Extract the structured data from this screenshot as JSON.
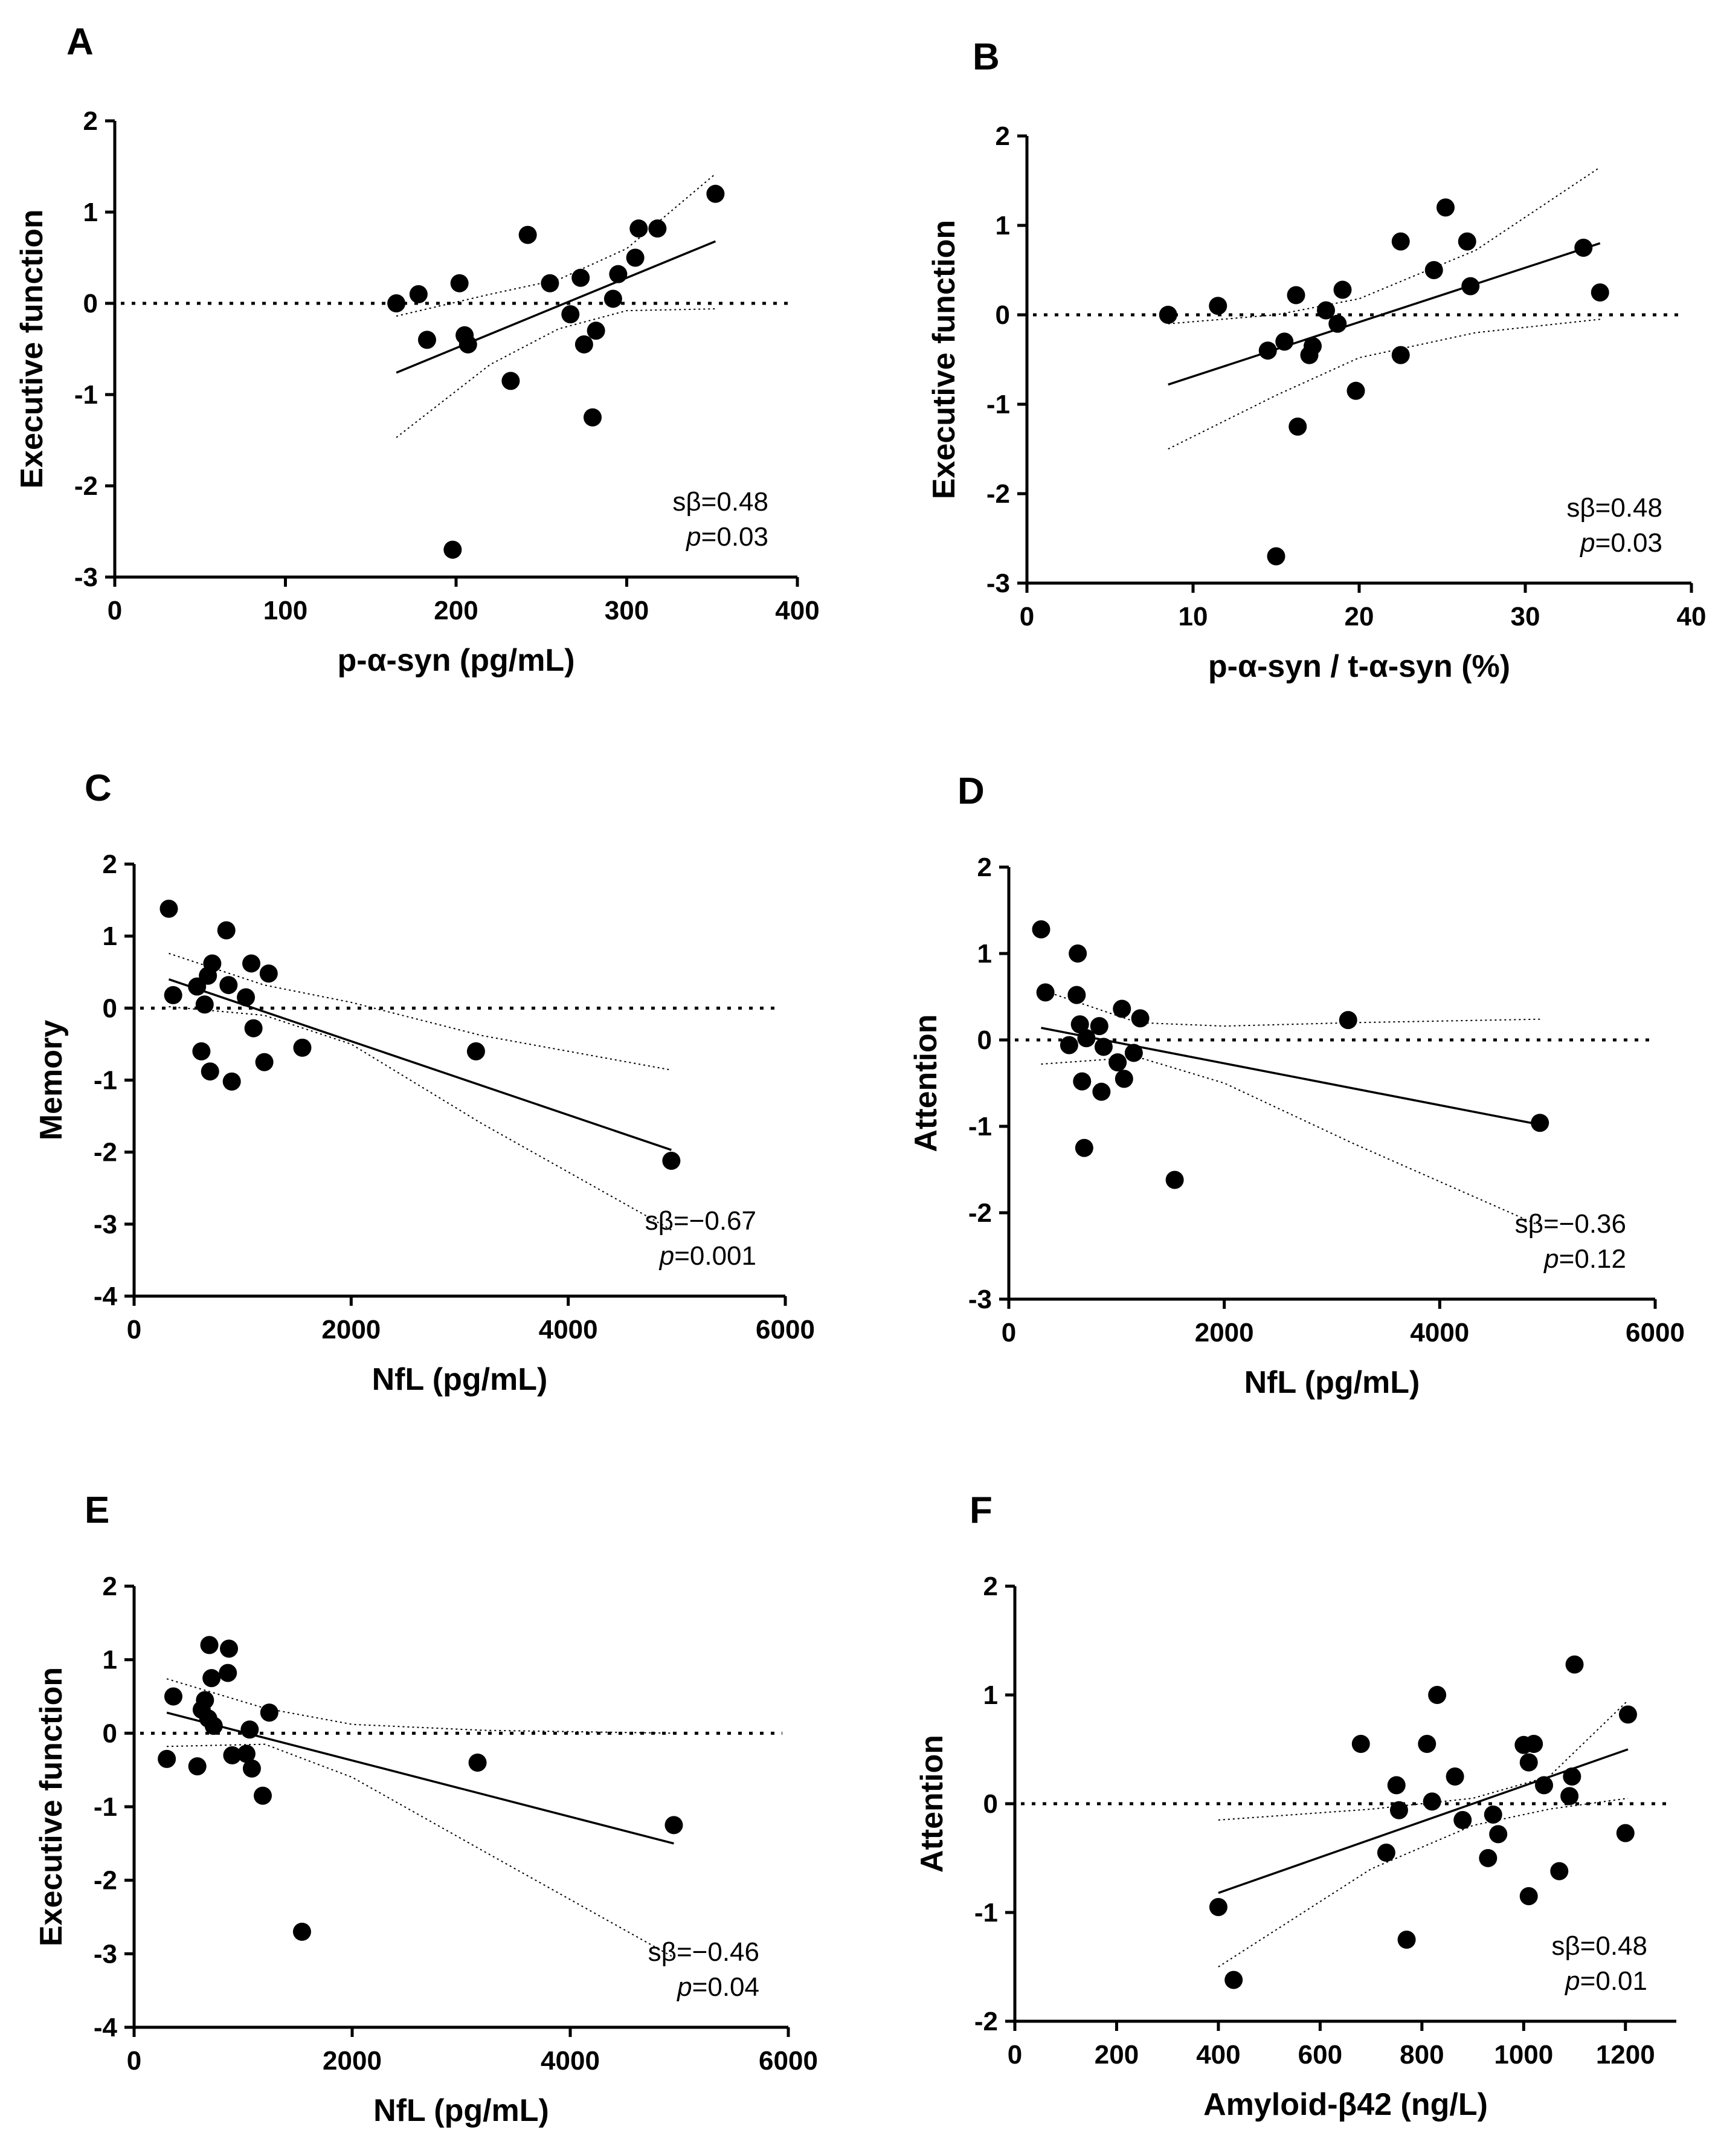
{
  "chart_data": [
    {
      "type": "scatter",
      "panel": "A",
      "xlabel": "p-α-syn (pg/mL)",
      "ylabel": "Executive function",
      "xlim": [
        0,
        400
      ],
      "ylim": [
        -3,
        2
      ],
      "xticks": [
        0,
        100,
        200,
        300,
        400
      ],
      "yticks": [
        -3,
        -2,
        -1,
        0,
        1,
        2
      ],
      "xtick_labels": [
        "0",
        "100",
        "200",
        "300",
        "400"
      ],
      "ytick_labels": [
        "-3",
        "-2",
        "-1",
        "0",
        "1",
        "2"
      ],
      "points": [
        [
          165,
          0.0
        ],
        [
          178,
          0.1
        ],
        [
          183,
          -0.4
        ],
        [
          202,
          0.22
        ],
        [
          205,
          -0.35
        ],
        [
          207,
          -0.45
        ],
        [
          198,
          -2.7
        ],
        [
          232,
          -0.85
        ],
        [
          242,
          0.75
        ],
        [
          255,
          0.22
        ],
        [
          267,
          -0.12
        ],
        [
          273,
          0.28
        ],
        [
          275,
          -0.45
        ],
        [
          280,
          -1.25
        ],
        [
          282,
          -0.3
        ],
        [
          292,
          0.05
        ],
        [
          295,
          0.32
        ],
        [
          305,
          0.5
        ],
        [
          307,
          0.82
        ],
        [
          318,
          0.82
        ],
        [
          352,
          1.2
        ]
      ],
      "fit": {
        "x": [
          165,
          352
        ],
        "y": [
          -0.76,
          0.68
        ]
      },
      "ci_upper": [
        [
          165,
          -0.14
        ],
        [
          220,
          0.1
        ],
        [
          260,
          0.26
        ],
        [
          300,
          0.6
        ],
        [
          352,
          1.42
        ]
      ],
      "ci_lower": [
        [
          165,
          -1.47
        ],
        [
          220,
          -0.67
        ],
        [
          260,
          -0.28
        ],
        [
          300,
          -0.08
        ],
        [
          352,
          -0.06
        ]
      ],
      "stat_beta": "sβ=0.48",
      "stat_p": "p",
      "stat_p_value": "=0.03"
    },
    {
      "type": "scatter",
      "panel": "B",
      "xlabel": "p-α-syn / t-α-syn (%)",
      "ylabel": "Executive function",
      "xlim": [
        0,
        40
      ],
      "ylim": [
        -3,
        2
      ],
      "xticks": [
        0,
        10,
        20,
        30,
        40
      ],
      "yticks": [
        -3,
        -2,
        -1,
        0,
        1,
        2
      ],
      "xtick_labels": [
        "0",
        "10",
        "20",
        "30",
        "40"
      ],
      "ytick_labels": [
        "-3",
        "-2",
        "-1",
        "0",
        "1",
        "2"
      ],
      "points": [
        [
          8.5,
          0.0
        ],
        [
          11.5,
          0.1
        ],
        [
          14.5,
          -0.4
        ],
        [
          15.0,
          -2.7
        ],
        [
          15.5,
          -0.3
        ],
        [
          16.2,
          0.22
        ],
        [
          16.3,
          -1.25
        ],
        [
          17.0,
          -0.45
        ],
        [
          17.2,
          -0.35
        ],
        [
          18.0,
          0.05
        ],
        [
          18.7,
          -0.1
        ],
        [
          19.0,
          0.28
        ],
        [
          19.8,
          -0.85
        ],
        [
          22.5,
          -0.45
        ],
        [
          22.5,
          0.82
        ],
        [
          24.5,
          0.5
        ],
        [
          25.2,
          1.2
        ],
        [
          26.5,
          0.82
        ],
        [
          26.7,
          0.32
        ],
        [
          33.5,
          0.75
        ],
        [
          34.5,
          0.25
        ]
      ],
      "fit": {
        "x": [
          8.5,
          34.5
        ],
        "y": [
          -0.78,
          0.8
        ]
      },
      "ci_upper": [
        [
          8.5,
          -0.1
        ],
        [
          15,
          0.0
        ],
        [
          20,
          0.18
        ],
        [
          27,
          0.72
        ],
        [
          34.5,
          1.65
        ]
      ],
      "ci_lower": [
        [
          8.5,
          -1.5
        ],
        [
          15,
          -0.9
        ],
        [
          20,
          -0.48
        ],
        [
          27,
          -0.2
        ],
        [
          34.5,
          -0.05
        ]
      ],
      "stat_beta": "sβ=0.48",
      "stat_p": "p",
      "stat_p_value": "=0.03"
    },
    {
      "type": "scatter",
      "panel": "C",
      "xlabel": "NfL (pg/mL)",
      "ylabel": "Memory",
      "xlim": [
        0,
        6000
      ],
      "ylim": [
        -4,
        2
      ],
      "xticks": [
        0,
        2000,
        4000,
        6000
      ],
      "yticks": [
        -4,
        -3,
        -2,
        -1,
        0,
        1,
        2
      ],
      "xtick_labels": [
        "0",
        "2000",
        "4000",
        "6000"
      ],
      "ytick_labels": [
        "-4",
        "-3",
        "-2",
        "-1",
        "0",
        "1",
        "2"
      ],
      "points": [
        [
          320,
          1.38
        ],
        [
          360,
          0.18
        ],
        [
          580,
          0.3
        ],
        [
          620,
          -0.6
        ],
        [
          650,
          0.05
        ],
        [
          680,
          0.45
        ],
        [
          720,
          0.62
        ],
        [
          700,
          -0.88
        ],
        [
          850,
          1.08
        ],
        [
          870,
          0.32
        ],
        [
          900,
          -1.02
        ],
        [
          1030,
          0.15
        ],
        [
          1080,
          0.62
        ],
        [
          1100,
          -0.28
        ],
        [
          1200,
          -0.75
        ],
        [
          1240,
          0.48
        ],
        [
          1550,
          -0.55
        ],
        [
          3150,
          -0.6
        ],
        [
          4950,
          -2.12
        ]
      ],
      "fit": {
        "x": [
          320,
          4950
        ],
        "y": [
          0.4,
          -1.97
        ]
      },
      "ci_upper": [
        [
          320,
          0.76
        ],
        [
          1200,
          0.32
        ],
        [
          2000,
          0.08
        ],
        [
          3200,
          -0.38
        ],
        [
          4950,
          -0.86
        ]
      ],
      "ci_lower": [
        [
          320,
          0.02
        ],
        [
          1200,
          -0.1
        ],
        [
          2000,
          -0.5
        ],
        [
          3200,
          -1.6
        ],
        [
          4950,
          -3.08
        ]
      ],
      "stat_beta": "sβ=−0.67",
      "stat_p": "p",
      "stat_p_value": "=0.001"
    },
    {
      "type": "scatter",
      "panel": "D",
      "xlabel": "NfL (pg/mL)",
      "ylabel": "Attention",
      "xlim": [
        0,
        6000
      ],
      "ylim": [
        -3,
        2
      ],
      "xticks": [
        0,
        2000,
        4000,
        6000
      ],
      "yticks": [
        -3,
        -2,
        -1,
        0,
        1,
        2
      ],
      "xtick_labels": [
        "0",
        "2000",
        "4000",
        "6000"
      ],
      "ytick_labels": [
        "-3",
        "-2",
        "-1",
        "0",
        "1",
        "2"
      ],
      "points": [
        [
          300,
          1.28
        ],
        [
          340,
          0.55
        ],
        [
          560,
          -0.06
        ],
        [
          630,
          0.52
        ],
        [
          640,
          1.0
        ],
        [
          660,
          0.18
        ],
        [
          680,
          -0.48
        ],
        [
          700,
          -1.25
        ],
        [
          720,
          0.02
        ],
        [
          840,
          0.16
        ],
        [
          860,
          -0.6
        ],
        [
          880,
          -0.08
        ],
        [
          1010,
          -0.26
        ],
        [
          1050,
          0.36
        ],
        [
          1070,
          -0.45
        ],
        [
          1160,
          -0.15
        ],
        [
          1220,
          0.25
        ],
        [
          1540,
          -1.62
        ],
        [
          3150,
          0.23
        ],
        [
          4930,
          -0.96
        ]
      ],
      "fit": {
        "x": [
          300,
          4930
        ],
        "y": [
          0.14,
          -0.98
        ]
      },
      "ci_upper": [
        [
          300,
          0.58
        ],
        [
          1200,
          0.2
        ],
        [
          2000,
          0.16
        ],
        [
          3200,
          0.2
        ],
        [
          4930,
          0.24
        ]
      ],
      "ci_lower": [
        [
          300,
          -0.28
        ],
        [
          1200,
          -0.2
        ],
        [
          2000,
          -0.5
        ],
        [
          3200,
          -1.2
        ],
        [
          4930,
          -2.15
        ]
      ],
      "stat_beta": "sβ=−0.36",
      "stat_p": "p",
      "stat_p_value": "=0.12"
    },
    {
      "type": "scatter",
      "panel": "E",
      "xlabel": "NfL (pg/mL)",
      "ylabel": "Executive function",
      "xlim": [
        0,
        6000
      ],
      "ylim": [
        -4,
        2
      ],
      "xticks": [
        0,
        2000,
        4000,
        6000
      ],
      "yticks": [
        -4,
        -3,
        -2,
        -1,
        0,
        1,
        2
      ],
      "xtick_labels": [
        "0",
        "2000",
        "4000",
        "6000"
      ],
      "ytick_labels": [
        "-4",
        "-3",
        "-2",
        "-1",
        "0",
        "1",
        "2"
      ],
      "points": [
        [
          300,
          -0.35
        ],
        [
          360,
          0.5
        ],
        [
          580,
          -0.45
        ],
        [
          620,
          0.32
        ],
        [
          650,
          0.45
        ],
        [
          680,
          0.2
        ],
        [
          690,
          1.2
        ],
        [
          710,
          0.75
        ],
        [
          730,
          0.1
        ],
        [
          860,
          0.82
        ],
        [
          870,
          1.15
        ],
        [
          900,
          -0.3
        ],
        [
          1030,
          -0.28
        ],
        [
          1060,
          0.05
        ],
        [
          1080,
          -0.48
        ],
        [
          1180,
          -0.85
        ],
        [
          1240,
          0.28
        ],
        [
          1540,
          -2.7
        ],
        [
          3150,
          -0.4
        ],
        [
          4950,
          -1.25
        ]
      ],
      "fit": {
        "x": [
          300,
          4950
        ],
        "y": [
          0.28,
          -1.5
        ]
      },
      "ci_upper": [
        [
          300,
          0.74
        ],
        [
          1200,
          0.34
        ],
        [
          2000,
          0.12
        ],
        [
          3200,
          0.04
        ],
        [
          4950,
          0.0
        ]
      ],
      "ci_lower": [
        [
          300,
          -0.18
        ],
        [
          1200,
          -0.15
        ],
        [
          2000,
          -0.6
        ],
        [
          3200,
          -1.6
        ],
        [
          4950,
          -3.05
        ]
      ],
      "stat_beta": "sβ=−0.46",
      "stat_p": "p",
      "stat_p_value": "=0.04"
    },
    {
      "type": "scatter",
      "panel": "F",
      "xlabel": "Amyloid-β42 (ng/L)",
      "ylabel": "Attention",
      "xlim": [
        0,
        1300
      ],
      "ylim": [
        -2,
        2
      ],
      "xticks": [
        0,
        200,
        400,
        600,
        800,
        1000,
        1200
      ],
      "yticks": [
        -2,
        -1,
        0,
        1,
        2
      ],
      "xtick_labels": [
        "0",
        "200",
        "400",
        "600",
        "800",
        "1000",
        "1200"
      ],
      "ytick_labels": [
        "-2",
        "-1",
        "0",
        "1",
        "2"
      ],
      "points": [
        [
          400,
          -0.95
        ],
        [
          430,
          -1.62
        ],
        [
          680,
          0.55
        ],
        [
          730,
          -0.45
        ],
        [
          750,
          0.17
        ],
        [
          755,
          -0.06
        ],
        [
          770,
          -1.25
        ],
        [
          810,
          0.55
        ],
        [
          820,
          0.02
        ],
        [
          830,
          1.0
        ],
        [
          865,
          0.25
        ],
        [
          880,
          -0.15
        ],
        [
          930,
          -0.5
        ],
        [
          940,
          -0.1
        ],
        [
          950,
          -0.28
        ],
        [
          1000,
          0.54
        ],
        [
          1010,
          0.38
        ],
        [
          1020,
          0.55
        ],
        [
          1010,
          -0.85
        ],
        [
          1040,
          0.17
        ],
        [
          1070,
          -0.62
        ],
        [
          1090,
          0.07
        ],
        [
          1095,
          0.25
        ],
        [
          1100,
          1.28
        ],
        [
          1200,
          -0.27
        ],
        [
          1205,
          0.82
        ]
      ],
      "fit": {
        "x": [
          400,
          1205
        ],
        "y": [
          -0.82,
          0.5
        ]
      },
      "ci_upper": [
        [
          400,
          -0.15
        ],
        [
          700,
          -0.05
        ],
        [
          900,
          0.05
        ],
        [
          1050,
          0.25
        ],
        [
          1205,
          0.95
        ]
      ],
      "ci_lower": [
        [
          400,
          -1.5
        ],
        [
          700,
          -0.6
        ],
        [
          900,
          -0.2
        ],
        [
          1050,
          -0.05
        ],
        [
          1205,
          0.05
        ]
      ],
      "stat_beta": "sβ=0.48",
      "stat_p": "p",
      "stat_p_value": "=0.01"
    }
  ]
}
